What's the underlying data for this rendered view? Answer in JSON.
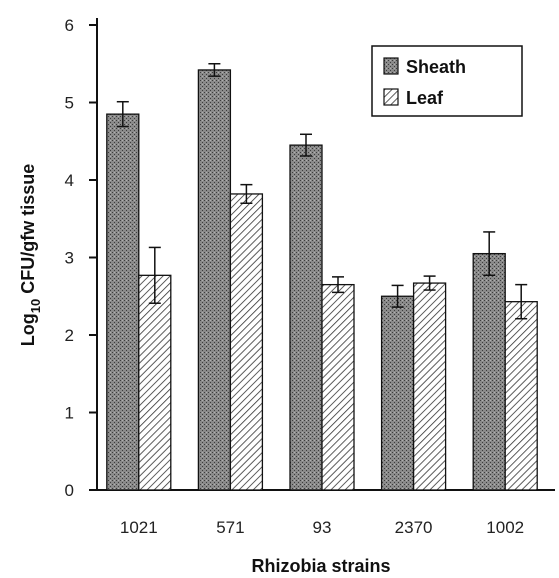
{
  "chart_data": {
    "type": "bar",
    "title": "",
    "xlabel": "Rhizobia strains",
    "ylabel_prefix": "Log",
    "ylabel_sub": "10",
    "ylabel_suffix": " CFU/gfw tissue",
    "ylim": [
      0,
      6
    ],
    "yticks": [
      0,
      1,
      2,
      3,
      4,
      5,
      6
    ],
    "categories": [
      "1021",
      "571",
      "93",
      "2370",
      "1002"
    ],
    "series": [
      {
        "name": "Sheath",
        "values": [
          4.85,
          5.42,
          4.45,
          2.5,
          3.05
        ],
        "errors": [
          0.16,
          0.08,
          0.14,
          0.14,
          0.28
        ],
        "color": "#7a7a7a",
        "pattern": "dense-dots"
      },
      {
        "name": "Leaf",
        "values": [
          2.77,
          3.82,
          2.65,
          2.67,
          2.43
        ],
        "errors": [
          0.36,
          0.12,
          0.1,
          0.09,
          0.22
        ],
        "color": "#ffffff",
        "pattern": "diagonal-hatch"
      }
    ],
    "legend_position": "top-right",
    "grid": false
  }
}
